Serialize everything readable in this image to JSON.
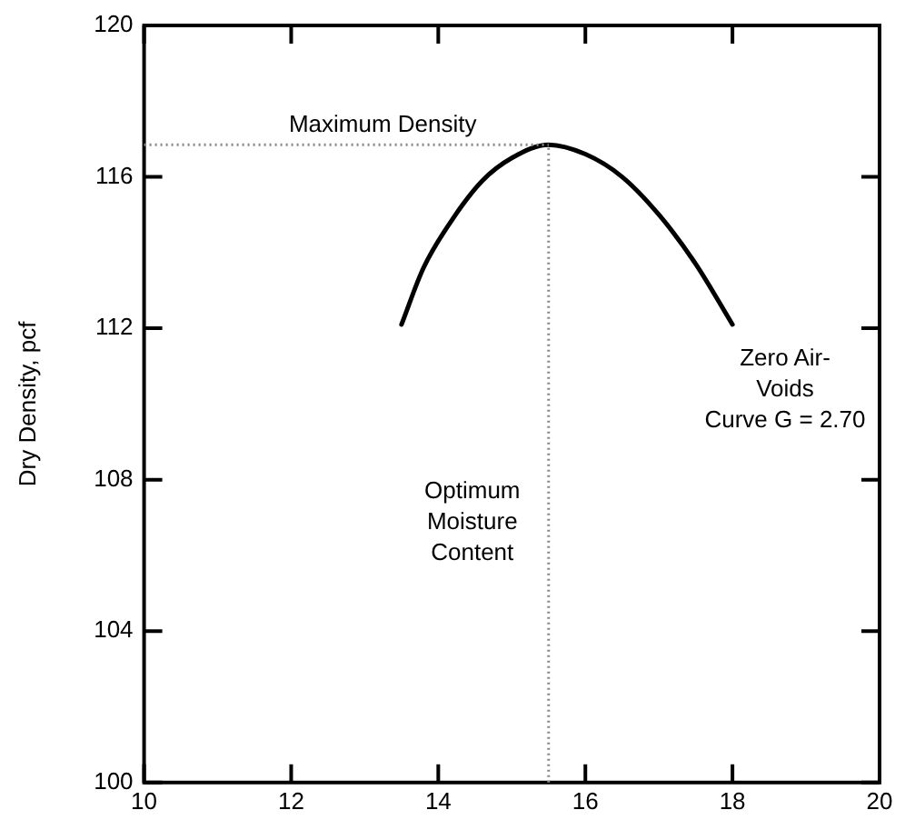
{
  "chart_data": {
    "type": "line",
    "ylabel": "Dry Density, pcf",
    "x": [
      13.5,
      13.8,
      14.2,
      14.6,
      15.0,
      15.5,
      16.0,
      16.5,
      17.0,
      17.5,
      18.0
    ],
    "series": [
      {
        "color": "#000000",
        "values": [
          112.1,
          113.6,
          114.9,
          115.9,
          116.5,
          116.85,
          116.6,
          116.0,
          115.0,
          113.7,
          112.1
        ]
      }
    ],
    "xlim": [
      10,
      20
    ],
    "xticks": [
      10,
      12,
      14,
      16,
      18,
      20
    ],
    "ylim": [
      100,
      120
    ],
    "yticks": [
      100,
      104,
      108,
      112,
      116,
      120
    ],
    "grid": false,
    "legend": false,
    "marker": "none",
    "line_style": "solid",
    "ref_lines": [
      {
        "axis": "y",
        "value": 116.85,
        "label": "Maximum Density",
        "line_style": "dotted",
        "color": "#888888"
      },
      {
        "axis": "x",
        "value": 15.5,
        "label": "Optimum\nMoisture\nContent",
        "line_style": "dotted",
        "color": "#888888"
      }
    ],
    "annotations": [
      "Zero Air-\nVoids\nCurve G = 2.70"
    ]
  }
}
